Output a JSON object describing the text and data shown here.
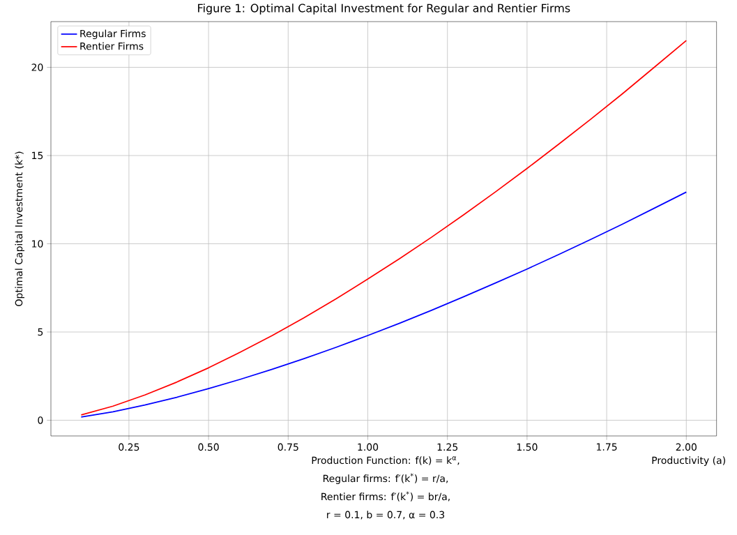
{
  "chart_data": {
    "type": "line",
    "title": "Figure 1: Optimal Capital Investment for Regular and Rentier Firms",
    "xlabel": "Productivity (a)",
    "ylabel": "Optimal Capital Investment (k*)",
    "annotations": [
      "Production Function: f(k) = k$^{α}$,",
      "Regular firms: f′(k$^{*}$) = r/a,",
      "Rentier firms: f′(k$^{*}$) = br/a,",
      "r = 0.1, b = 0.7, α = 0.3"
    ],
    "x": [
      0.1,
      0.2,
      0.3,
      0.4,
      0.5,
      0.6,
      0.7,
      0.8,
      0.9,
      1.0,
      1.1,
      1.2,
      1.3,
      1.4,
      1.5,
      1.6,
      1.7,
      1.8,
      1.9,
      2.0
    ],
    "series": [
      {
        "name": "Regular Firms",
        "color": "#0000ff",
        "values": [
          0.18,
          0.48,
          0.86,
          1.3,
          1.79,
          2.32,
          2.89,
          3.49,
          4.13,
          4.8,
          5.5,
          6.23,
          6.99,
          7.77,
          8.57,
          9.4,
          10.25,
          11.12,
          12.02,
          12.93
        ]
      },
      {
        "name": "Rentier Firms",
        "color": "#ff0000",
        "values": [
          0.3,
          0.8,
          1.43,
          2.16,
          2.97,
          3.86,
          4.8,
          5.81,
          6.88,
          8.0,
          9.16,
          10.37,
          11.63,
          12.93,
          14.27,
          15.65,
          17.06,
          18.51,
          20.01,
          21.52
        ]
      }
    ],
    "xlim": [
      0.005,
      2.095
    ],
    "ylim": [
      -0.89,
      22.59
    ],
    "xticks": [
      {
        "value": 0.25,
        "label": "0.25"
      },
      {
        "value": 0.5,
        "label": "0.50"
      },
      {
        "value": 0.75,
        "label": "0.75"
      },
      {
        "value": 1.0,
        "label": "1.00"
      },
      {
        "value": 1.25,
        "label": "1.25"
      },
      {
        "value": 1.5,
        "label": "1.50"
      },
      {
        "value": 1.75,
        "label": "1.75"
      },
      {
        "value": 2.0,
        "label": "2.00"
      }
    ],
    "yticks": [
      0,
      5,
      10,
      15,
      20
    ],
    "grid": true,
    "legend": "top left",
    "marker": "none",
    "line_style": "solid"
  }
}
